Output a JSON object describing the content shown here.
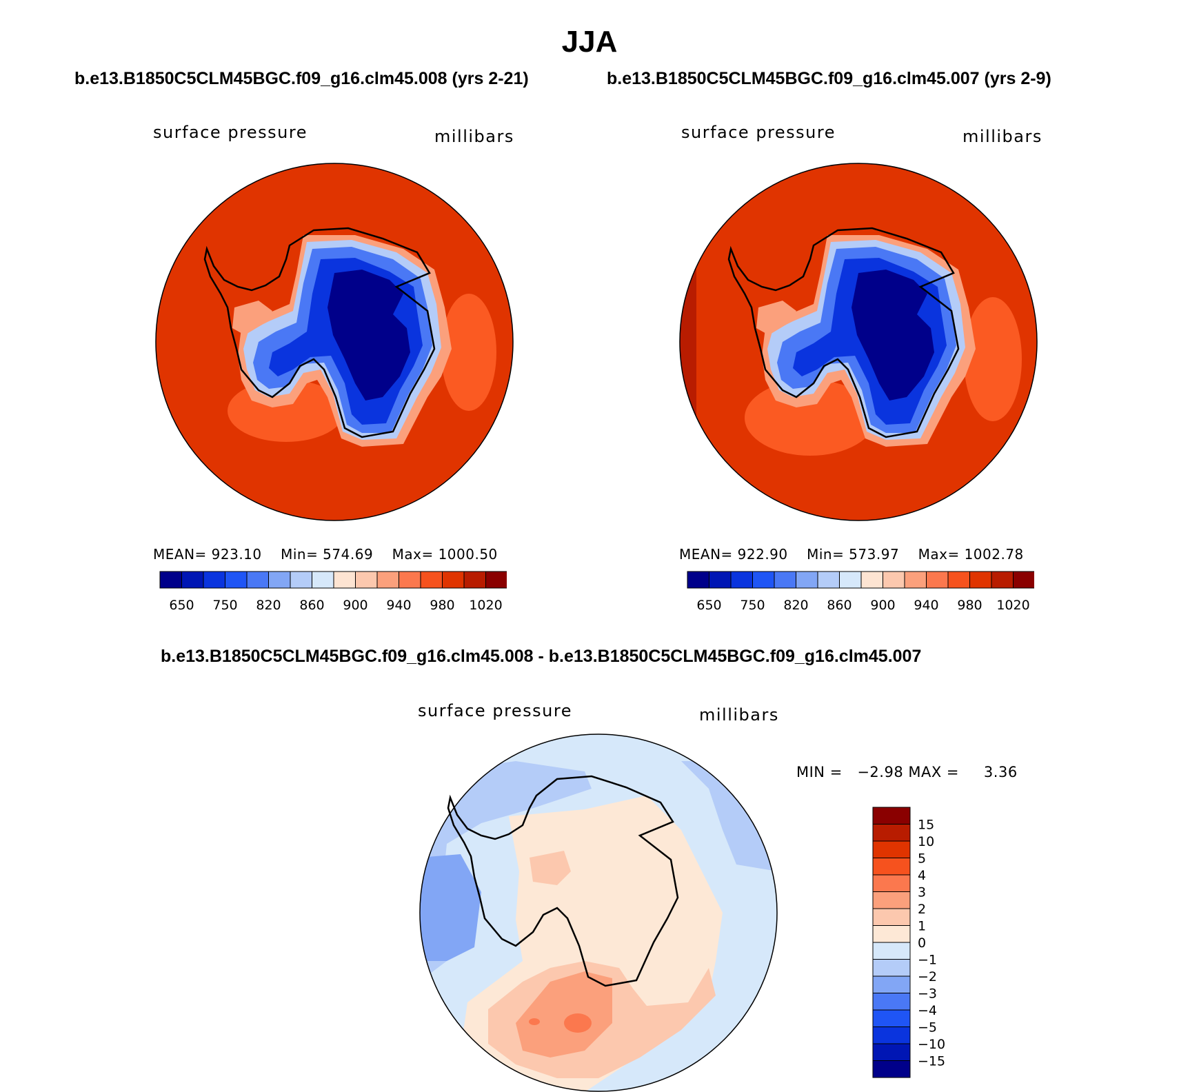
{
  "title": "JJA",
  "panels": [
    {
      "case_title": "b.e13.B1850C5CLM45BGC.f09_g16.clm45.008 (yrs 2-21)",
      "variable": "surface pressure",
      "units": "millibars",
      "stats": {
        "mean": "MEAN= 923.10",
        "min": "Min= 574.69",
        "max": "Max= 1000.50"
      }
    },
    {
      "case_title": "b.e13.B1850C5CLM45BGC.f09_g16.clm45.007 (yrs 2-9)",
      "variable": "surface pressure",
      "units": "millibars",
      "stats": {
        "mean": "MEAN= 922.90",
        "min": "Min= 573.97",
        "max": "Max= 1002.78"
      }
    }
  ],
  "colorbar_top": {
    "colors": [
      "#00008a",
      "#0016b4",
      "#0a34de",
      "#1f55f5",
      "#4a78f5",
      "#82a6f5",
      "#b4ccf8",
      "#d6e8fa",
      "#fde4d2",
      "#fcc8ae",
      "#fba07c",
      "#fb784e",
      "#f6521e",
      "#e03400",
      "#b81c00",
      "#8a0000"
    ],
    "tick_labels": [
      "650",
      "750",
      "820",
      "860",
      "900",
      "940",
      "980",
      "1020"
    ]
  },
  "diff": {
    "title": "b.e13.B1850C5CLM45BGC.f09_g16.clm45.008 - b.e13.B1850C5CLM45BGC.f09_g16.clm45.007",
    "variable": "surface pressure",
    "units": "millibars",
    "min_label": "MIN =",
    "min_value": "−2.98",
    "max_label": "MAX =",
    "max_value": "3.36",
    "colorbar": {
      "colors_bottom_to_top": [
        "#00008a",
        "#0016b4",
        "#0a34de",
        "#1f55f5",
        "#4a78f5",
        "#82a6f5",
        "#b4ccf8",
        "#d6e8fa",
        "#fde8d6",
        "#fcc8ae",
        "#fba07c",
        "#fb784e",
        "#f6521e",
        "#e03400",
        "#b81c00",
        "#8a0000"
      ],
      "tick_labels_top_to_bottom": [
        "15",
        "10",
        "5",
        "4",
        "3",
        "2",
        "1",
        "0",
        "−1",
        "−2",
        "−3",
        "−4",
        "−5",
        "−10",
        "−15"
      ]
    }
  },
  "map_colors": {
    "ocean_fill": "#e03400",
    "ocean_high": "#fb5a22",
    "ice_deep": "#00008a",
    "ice_mid": "#0a34de",
    "ice_light": "#4a78f5",
    "ice_pale": "#b4ccf8",
    "coast_warm": "#fba07c",
    "diff_bg": "#d6e8fa",
    "diff_neg1": "#b4ccf8",
    "diff_neg2": "#82a6f5",
    "diff_pos0": "#fde8d6",
    "diff_pos1": "#fcc8ae",
    "diff_pos2": "#fba07c",
    "diff_pos3": "#fb784e"
  }
}
